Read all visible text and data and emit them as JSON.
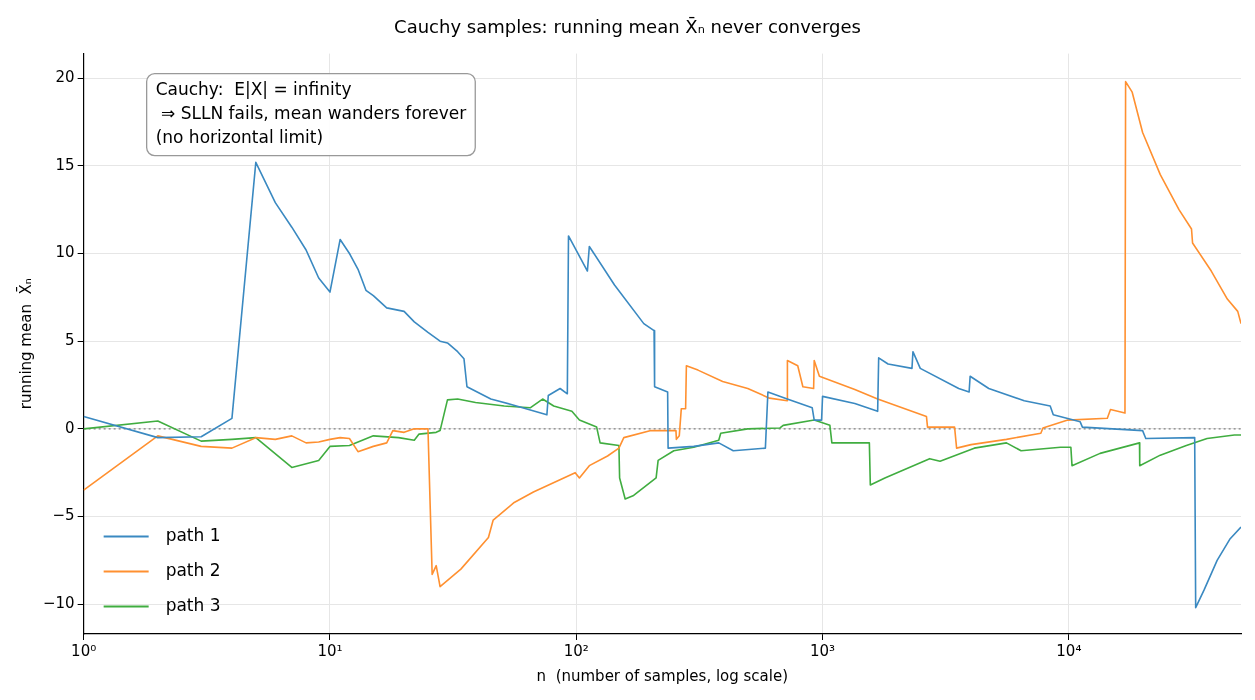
{
  "chart_data": {
    "type": "line",
    "title": "Cauchy samples: running mean X̄ₙ never converges",
    "xlabel": "n  (number of samples, log scale)",
    "ylabel": "running mean  X̄ₙ",
    "log": "x",
    "grid": true,
    "legend": "bottom left",
    "xlim": [
      1,
      50000
    ],
    "xticks": [
      {
        "value": 1,
        "label": "10⁰"
      },
      {
        "value": 10,
        "label": "10¹"
      },
      {
        "value": 100,
        "label": "10²"
      },
      {
        "value": 1000,
        "label": "10³"
      },
      {
        "value": 10000,
        "label": "10⁴"
      }
    ],
    "ylim": [
      -11.7,
      21.4
    ],
    "yticks": [
      {
        "value": -10,
        "label": "−10"
      },
      {
        "value": -5,
        "label": "−5"
      },
      0,
      5,
      10,
      15,
      20
    ],
    "ref_lines": [
      {
        "axis": "y",
        "value": 0,
        "color": "#808080",
        "line_style": "dotted"
      }
    ],
    "annotations": [
      "Cauchy:  E|X| = infinity\n ⇒ SLLN fails, mean wanders forever\n(no horizontal limit)"
    ],
    "series": [
      {
        "name": "path 1",
        "color": "#3a89c1",
        "x": [
          1,
          2,
          3,
          4,
          5,
          6,
          7,
          8,
          9,
          10,
          11,
          12,
          13,
          14,
          15,
          17,
          20,
          22,
          25,
          28,
          30,
          33,
          35,
          36,
          45,
          54,
          76,
          77,
          86,
          92,
          93,
          111,
          113,
          118,
          143,
          188,
          207,
          208,
          235,
          236,
          300,
          379,
          434,
          586,
          600,
          719,
          908,
          925,
          991,
          1000,
          1352,
          1674,
          1690,
          1845,
          2307,
          2328,
          2493,
          3571,
          3936,
          3974,
          4731,
          6590,
          8400,
          8645,
          11120,
          11350,
          19930,
          20530,
          32430,
          32730,
          35380,
          40000,
          45000,
          50000
        ],
        "values": [
          0.7,
          -0.5,
          -0.45,
          0.6,
          15.2,
          12.9,
          11.5,
          10.2,
          8.6,
          7.8,
          10.8,
          10.0,
          9.1,
          7.9,
          7.6,
          6.9,
          6.7,
          6.1,
          5.5,
          5.0,
          4.9,
          4.4,
          4.0,
          2.4,
          1.7,
          1.4,
          0.8,
          1.9,
          2.3,
          2.0,
          11.0,
          9.0,
          10.4,
          10.0,
          8.2,
          6.0,
          5.6,
          2.4,
          2.1,
          -1.1,
          -1.0,
          -0.8,
          -1.25,
          -1.1,
          2.1,
          1.7,
          1.2,
          0.5,
          0.5,
          1.85,
          1.45,
          1.0,
          4.05,
          3.7,
          3.45,
          4.4,
          3.45,
          2.3,
          2.1,
          3.0,
          2.3,
          1.6,
          1.3,
          0.8,
          0.4,
          0.1,
          -0.1,
          -0.55,
          -0.5,
          -10.2,
          -9.2,
          -7.5,
          -6.3,
          -5.6
        ]
      },
      {
        "name": "path 2",
        "color": "#ff9030",
        "x": [
          1,
          2,
          3,
          4,
          5,
          6,
          7,
          8,
          9,
          10,
          11,
          12,
          13,
          15,
          17,
          18,
          20,
          22,
          25,
          26,
          27,
          28,
          34,
          44,
          46,
          56,
          67,
          99,
          103,
          113,
          134,
          149,
          156,
          201,
          254,
          255,
          262,
          267,
          278,
          280,
          312,
          393,
          497,
          609,
          719,
          720,
          793,
          832,
          920,
          925,
          971,
          1352,
          1674,
          2642,
          2668,
          3436,
          3502,
          4010,
          5581,
          7697,
          7848,
          9900,
          14330,
          14760,
          16900,
          17000,
          18080,
          19930,
          23510,
          28000,
          31480,
          31790,
          37870,
          44000,
          48500,
          50000
        ],
        "values": [
          -3.5,
          -0.4,
          -1.0,
          -1.1,
          -0.5,
          -0.6,
          -0.4,
          -0.8,
          -0.75,
          -0.6,
          -0.5,
          -0.55,
          -1.3,
          -1.0,
          -0.8,
          -0.1,
          -0.2,
          0,
          0,
          -8.3,
          -7.8,
          -9.0,
          -8.0,
          -6.2,
          -5.2,
          -4.2,
          -3.6,
          -2.5,
          -2.8,
          -2.1,
          -1.55,
          -1.1,
          -0.5,
          -0.1,
          -0.1,
          -0.6,
          -0.4,
          1.15,
          1.15,
          3.6,
          3.35,
          2.7,
          2.3,
          1.75,
          1.6,
          3.9,
          3.6,
          2.4,
          2.3,
          3.9,
          3.0,
          2.25,
          1.7,
          0.7,
          0.1,
          0.1,
          -1.1,
          -0.9,
          -0.6,
          -0.25,
          0.05,
          0.5,
          0.6,
          1.1,
          0.9,
          19.8,
          19.2,
          16.9,
          14.5,
          12.5,
          11.4,
          10.6,
          9.0,
          7.4,
          6.7,
          6.0
        ]
      },
      {
        "name": "path 3",
        "color": "#40ad40",
        "x": [
          1,
          2,
          3,
          4,
          5,
          7,
          9,
          10,
          12,
          15,
          19,
          22,
          23,
          27,
          28,
          30,
          33,
          39,
          51,
          65,
          73,
          81,
          96,
          103,
          121,
          125,
          149,
          150,
          158,
          171,
          211,
          215,
          249,
          300,
          379,
          386,
          497,
          672,
          692,
          925,
          1071,
          1091,
          1549,
          1563,
          1791,
          2722,
          3000,
          4130,
          5581,
          6398,
          9250,
          10190,
          10300,
          13390,
          19360,
          19400,
          23510,
          29990,
          36410,
          47000,
          50000
        ],
        "values": [
          0,
          0.45,
          -0.7,
          -0.6,
          -0.5,
          -2.2,
          -1.8,
          -1.0,
          -0.95,
          -0.4,
          -0.5,
          -0.65,
          -0.3,
          -0.2,
          -0.1,
          1.65,
          1.7,
          1.5,
          1.3,
          1.2,
          1.7,
          1.3,
          1.0,
          0.5,
          0.1,
          -0.8,
          -0.95,
          -2.8,
          -4.0,
          -3.8,
          -2.8,
          -1.8,
          -1.25,
          -1.05,
          -0.65,
          -0.25,
          0,
          0.05,
          0.2,
          0.5,
          0.2,
          -0.8,
          -0.8,
          -3.2,
          -2.8,
          -1.7,
          -1.85,
          -1.1,
          -0.8,
          -1.25,
          -1.05,
          -1.05,
          -2.1,
          -1.4,
          -0.8,
          -2.1,
          -1.5,
          -0.95,
          -0.55,
          -0.35,
          -0.35
        ]
      }
    ]
  }
}
